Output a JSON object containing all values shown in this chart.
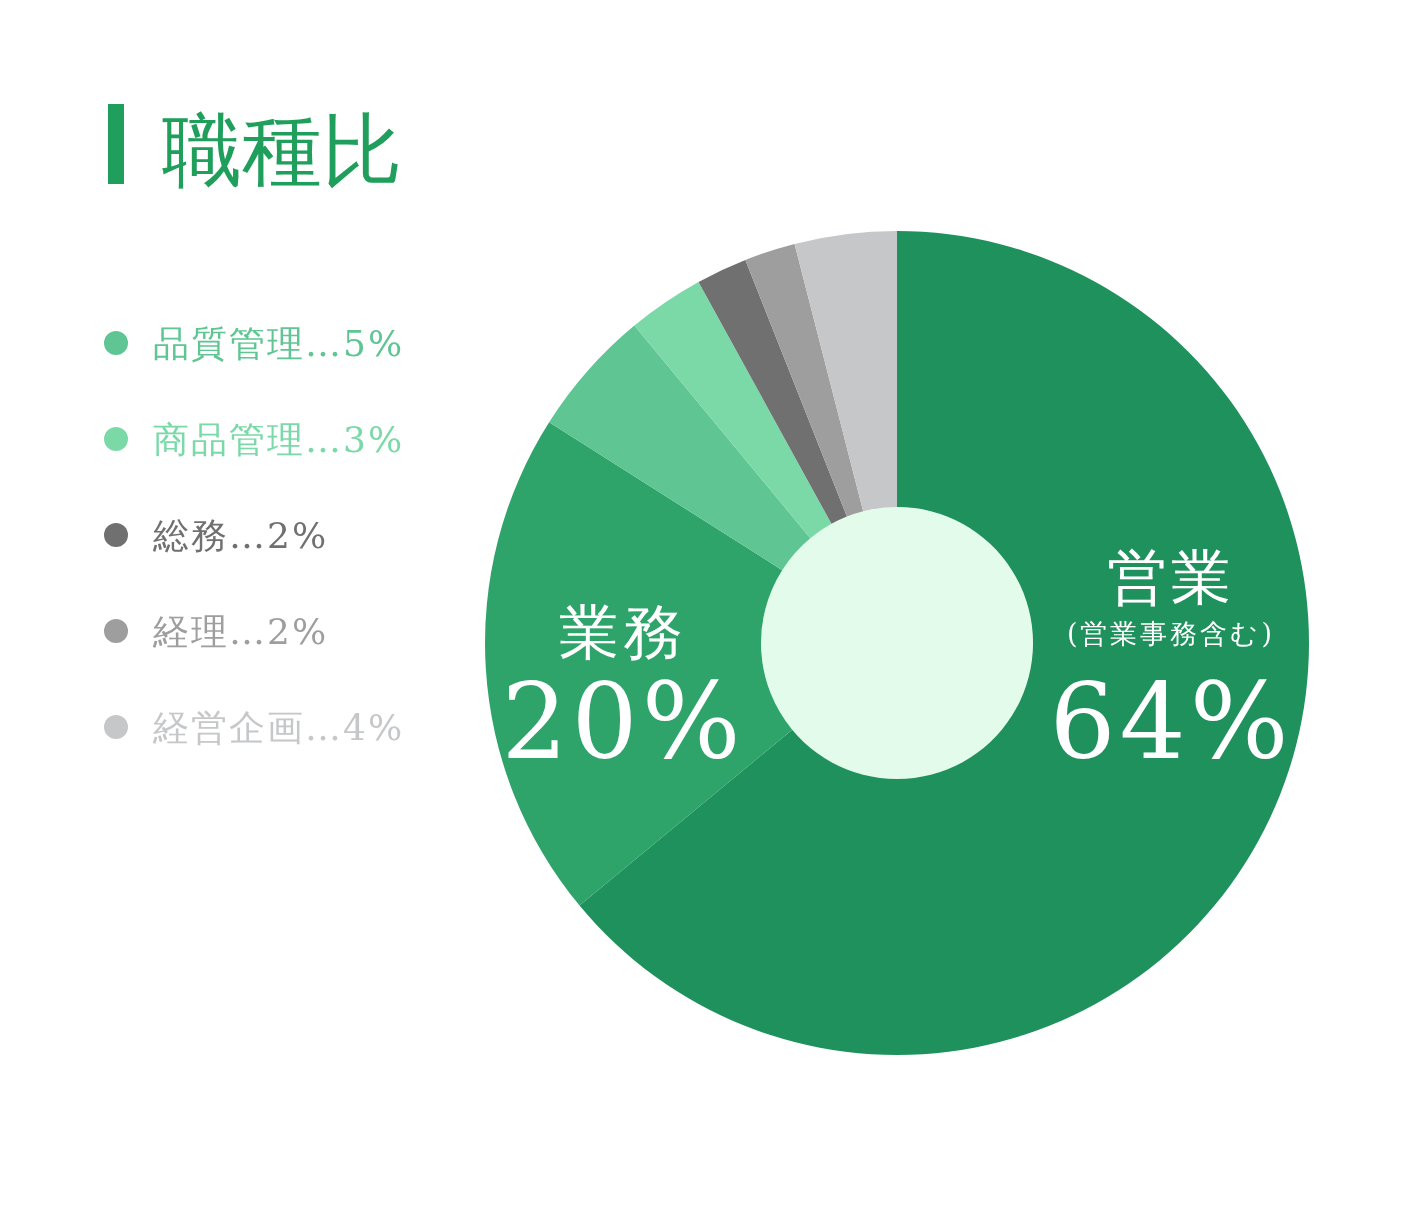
{
  "chart_data": {
    "type": "donut",
    "title": "職種比",
    "categories": [
      "営業",
      "業務",
      "品質管理",
      "商品管理",
      "総務",
      "経理",
      "経営企画"
    ],
    "values": [
      64,
      20,
      5,
      3,
      2,
      2,
      4
    ],
    "colors": [
      "#1e915c",
      "#2ea46a",
      "#5ec593",
      "#7bd9a8",
      "#707070",
      "#9e9e9e",
      "#c6c7c9"
    ],
    "value_labels": [
      "64%",
      "20%",
      "…5%",
      "…3%",
      "…2%",
      "…2%",
      "…4%"
    ],
    "annotations": [
      "(営業事務含む)"
    ],
    "legend": "left"
  }
}
